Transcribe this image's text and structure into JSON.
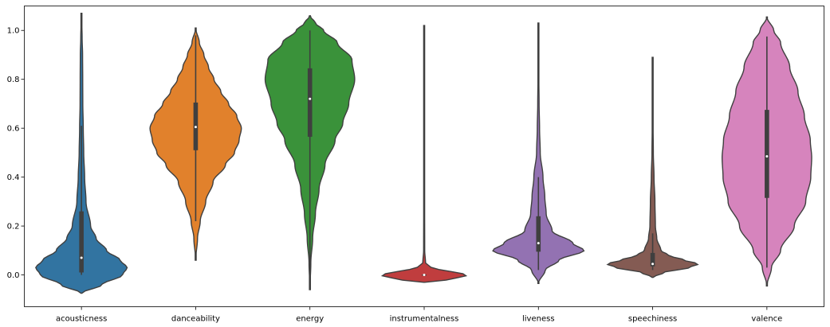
{
  "chart_data": {
    "type": "violin",
    "title": "",
    "xlabel": "",
    "ylabel": "",
    "ylim": [
      -0.13,
      1.1
    ],
    "grid": false,
    "y_ticks": [
      0.0,
      0.2,
      0.4,
      0.6,
      0.8,
      1.0
    ],
    "y_tick_labels": [
      "0.0",
      "0.2",
      "0.4",
      "0.6",
      "0.8",
      "1.0"
    ],
    "categories": [
      "acousticness",
      "danceability",
      "energy",
      "instrumentalness",
      "liveness",
      "speechiness",
      "valence"
    ],
    "colors": [
      "#3274a1",
      "#e1812c",
      "#3a923a",
      "#c03d3e",
      "#9372b2",
      "#845b53",
      "#d684bd"
    ],
    "series": [
      {
        "name": "acousticness",
        "range": [
          -0.075,
          1.07
        ],
        "profile": [
          [
            -0.075,
            0.0
          ],
          [
            -0.04,
            0.45
          ],
          [
            0.0,
            0.9
          ],
          [
            0.03,
            1.0
          ],
          [
            0.06,
            0.85
          ],
          [
            0.1,
            0.55
          ],
          [
            0.15,
            0.32
          ],
          [
            0.2,
            0.2
          ],
          [
            0.3,
            0.1
          ],
          [
            0.4,
            0.07
          ],
          [
            0.5,
            0.05
          ],
          [
            0.6,
            0.04
          ],
          [
            0.7,
            0.03
          ],
          [
            0.8,
            0.028
          ],
          [
            0.9,
            0.025
          ],
          [
            0.97,
            0.015
          ],
          [
            1.07,
            0.0
          ]
        ],
        "box": {
          "q1": 0.01,
          "median": 0.07,
          "q3": 0.26,
          "whisker_low": 0.0,
          "whisker_high": 0.61
        }
      },
      {
        "name": "danceability",
        "range": [
          0.06,
          1.01
        ],
        "profile": [
          [
            0.06,
            0.0
          ],
          [
            0.15,
            0.04
          ],
          [
            0.22,
            0.1
          ],
          [
            0.3,
            0.22
          ],
          [
            0.38,
            0.38
          ],
          [
            0.45,
            0.65
          ],
          [
            0.5,
            0.85
          ],
          [
            0.55,
            0.95
          ],
          [
            0.6,
            1.0
          ],
          [
            0.65,
            0.9
          ],
          [
            0.7,
            0.72
          ],
          [
            0.75,
            0.55
          ],
          [
            0.8,
            0.4
          ],
          [
            0.85,
            0.28
          ],
          [
            0.9,
            0.18
          ],
          [
            0.95,
            0.08
          ],
          [
            1.01,
            0.0
          ]
        ],
        "box": {
          "q1": 0.51,
          "median": 0.605,
          "q3": 0.705,
          "whisker_low": 0.22,
          "whisker_high": 0.98
        }
      },
      {
        "name": "energy",
        "range": [
          -0.06,
          1.06
        ],
        "profile": [
          [
            -0.06,
            0.0
          ],
          [
            0.05,
            0.02
          ],
          [
            0.15,
            0.06
          ],
          [
            0.25,
            0.12
          ],
          [
            0.35,
            0.2
          ],
          [
            0.45,
            0.33
          ],
          [
            0.55,
            0.55
          ],
          [
            0.62,
            0.72
          ],
          [
            0.7,
            0.85
          ],
          [
            0.8,
            0.98
          ],
          [
            0.88,
            0.92
          ],
          [
            0.95,
            0.6
          ],
          [
            1.0,
            0.3
          ],
          [
            1.03,
            0.12
          ],
          [
            1.06,
            0.0
          ]
        ],
        "box": {
          "q1": 0.565,
          "median": 0.72,
          "q3": 0.845,
          "whisker_low": 0.0,
          "whisker_high": 1.0
        }
      },
      {
        "name": "instrumentalness",
        "range": [
          -0.03,
          1.02
        ],
        "profile": [
          [
            -0.03,
            0.0
          ],
          [
            -0.02,
            0.5
          ],
          [
            -0.005,
            0.9
          ],
          [
            0.0,
            1.0
          ],
          [
            0.01,
            0.7
          ],
          [
            0.02,
            0.35
          ],
          [
            0.03,
            0.15
          ],
          [
            0.05,
            0.03
          ],
          [
            0.1,
            0.012
          ],
          [
            0.3,
            0.01
          ],
          [
            0.6,
            0.01
          ],
          [
            0.9,
            0.01
          ],
          [
            1.02,
            0.0
          ]
        ],
        "box": {
          "q1": 0.0,
          "median": 0.0,
          "q3": 0.002,
          "whisker_low": 0.0,
          "whisker_high": 0.005
        }
      },
      {
        "name": "liveness",
        "range": [
          -0.035,
          1.03
        ],
        "profile": [
          [
            -0.035,
            0.0
          ],
          [
            0.02,
            0.15
          ],
          [
            0.06,
            0.45
          ],
          [
            0.1,
            1.0
          ],
          [
            0.13,
            0.75
          ],
          [
            0.18,
            0.3
          ],
          [
            0.25,
            0.17
          ],
          [
            0.32,
            0.14
          ],
          [
            0.4,
            0.1
          ],
          [
            0.5,
            0.04
          ],
          [
            0.6,
            0.025
          ],
          [
            0.7,
            0.015
          ],
          [
            0.8,
            0.01
          ],
          [
            0.9,
            0.008
          ],
          [
            1.03,
            0.0
          ]
        ],
        "box": {
          "q1": 0.095,
          "median": 0.13,
          "q3": 0.24,
          "whisker_low": 0.02,
          "whisker_high": 0.4
        }
      },
      {
        "name": "speechiness",
        "range": [
          -0.01,
          0.89
        ],
        "profile": [
          [
            -0.01,
            0.0
          ],
          [
            0.01,
            0.25
          ],
          [
            0.03,
            0.8
          ],
          [
            0.045,
            1.0
          ],
          [
            0.06,
            0.7
          ],
          [
            0.08,
            0.35
          ],
          [
            0.1,
            0.18
          ],
          [
            0.15,
            0.09
          ],
          [
            0.2,
            0.06
          ],
          [
            0.3,
            0.05
          ],
          [
            0.4,
            0.03
          ],
          [
            0.5,
            0.015
          ],
          [
            0.6,
            0.01
          ],
          [
            0.7,
            0.008
          ],
          [
            0.89,
            0.0
          ]
        ],
        "box": {
          "q1": 0.035,
          "median": 0.045,
          "q3": 0.09,
          "whisker_low": 0.02,
          "whisker_high": 0.17
        }
      },
      {
        "name": "valence",
        "range": [
          -0.045,
          1.055
        ],
        "profile": [
          [
            -0.045,
            0.0
          ],
          [
            0.03,
            0.1
          ],
          [
            0.1,
            0.3
          ],
          [
            0.2,
            0.6
          ],
          [
            0.3,
            0.85
          ],
          [
            0.4,
            0.96
          ],
          [
            0.48,
            0.98
          ],
          [
            0.55,
            0.95
          ],
          [
            0.65,
            0.82
          ],
          [
            0.75,
            0.68
          ],
          [
            0.85,
            0.5
          ],
          [
            0.95,
            0.3
          ],
          [
            1.0,
            0.15
          ],
          [
            1.055,
            0.0
          ]
        ],
        "box": {
          "q1": 0.315,
          "median": 0.485,
          "q3": 0.675,
          "whisker_low": 0.03,
          "whisker_high": 0.975
        }
      }
    ]
  }
}
